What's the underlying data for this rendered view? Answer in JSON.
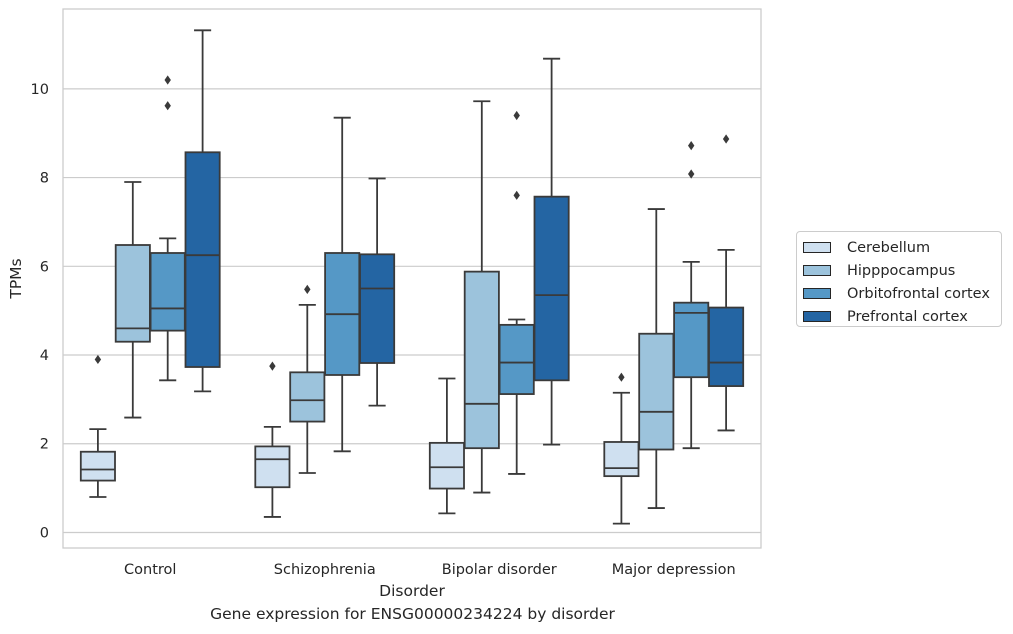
{
  "caption": "Gene expression for ENSG00000234224 by disorder",
  "chart_data": {
    "type": "box",
    "xlabel": "Disorder",
    "ylabel": "TPMs",
    "ylim": [
      -0.35,
      11.8
    ],
    "yticks": [
      0,
      2,
      4,
      6,
      8,
      10
    ],
    "grid": true,
    "legend_position": "right",
    "categories": [
      "Control",
      "Schizophrenia",
      "Bipolar disorder",
      "Major depression"
    ],
    "series": [
      {
        "name": "Cerebellum",
        "color": "#cfe0f0",
        "boxes": [
          {
            "whislo": 0.8,
            "q1": 1.17,
            "med": 1.42,
            "q3": 1.82,
            "whishi": 2.33,
            "fliers": [
              3.9
            ]
          },
          {
            "whislo": 0.35,
            "q1": 1.02,
            "med": 1.65,
            "q3": 1.94,
            "whishi": 2.38,
            "fliers": [
              3.75
            ]
          },
          {
            "whislo": 0.43,
            "q1": 0.99,
            "med": 1.47,
            "q3": 2.02,
            "whishi": 3.47,
            "fliers": []
          },
          {
            "whislo": 0.2,
            "q1": 1.27,
            "med": 1.45,
            "q3": 2.04,
            "whishi": 3.15,
            "fliers": [
              3.5
            ]
          }
        ]
      },
      {
        "name": "Hipppocampus",
        "color": "#9cc3dc",
        "boxes": [
          {
            "whislo": 2.59,
            "q1": 4.3,
            "med": 4.6,
            "q3": 6.48,
            "whishi": 7.9,
            "fliers": []
          },
          {
            "whislo": 1.34,
            "q1": 2.5,
            "med": 2.98,
            "q3": 3.61,
            "whishi": 5.13,
            "fliers": [
              5.48
            ]
          },
          {
            "whislo": 0.9,
            "q1": 1.9,
            "med": 2.9,
            "q3": 5.88,
            "whishi": 9.72,
            "fliers": []
          },
          {
            "whislo": 0.55,
            "q1": 1.87,
            "med": 2.72,
            "q3": 4.48,
            "whishi": 7.29,
            "fliers": []
          }
        ]
      },
      {
        "name": "Orbitofrontal cortex",
        "color": "#5598c6",
        "boxes": [
          {
            "whislo": 3.43,
            "q1": 4.55,
            "med": 5.05,
            "q3": 6.3,
            "whishi": 6.63,
            "fliers": [
              9.62,
              10.2
            ]
          },
          {
            "whislo": 1.83,
            "q1": 3.55,
            "med": 4.92,
            "q3": 6.3,
            "whishi": 9.35,
            "fliers": []
          },
          {
            "whislo": 1.32,
            "q1": 3.12,
            "med": 3.83,
            "q3": 4.68,
            "whishi": 4.8,
            "fliers": [
              7.6,
              9.4
            ]
          },
          {
            "whislo": 1.9,
            "q1": 3.5,
            "med": 4.95,
            "q3": 5.18,
            "whishi": 6.1,
            "fliers": [
              8.08,
              8.72
            ]
          }
        ]
      },
      {
        "name": "Prefrontal cortex",
        "color": "#2465a3",
        "boxes": [
          {
            "whislo": 3.18,
            "q1": 3.73,
            "med": 6.25,
            "q3": 8.57,
            "whishi": 11.32,
            "fliers": []
          },
          {
            "whislo": 2.86,
            "q1": 3.82,
            "med": 5.5,
            "q3": 6.27,
            "whishi": 7.98,
            "fliers": []
          },
          {
            "whislo": 1.98,
            "q1": 3.43,
            "med": 5.35,
            "q3": 7.57,
            "whishi": 10.68,
            "fliers": []
          },
          {
            "whislo": 2.3,
            "q1": 3.3,
            "med": 3.83,
            "q3": 5.07,
            "whishi": 6.37,
            "fliers": [
              8.87
            ]
          }
        ]
      }
    ]
  }
}
